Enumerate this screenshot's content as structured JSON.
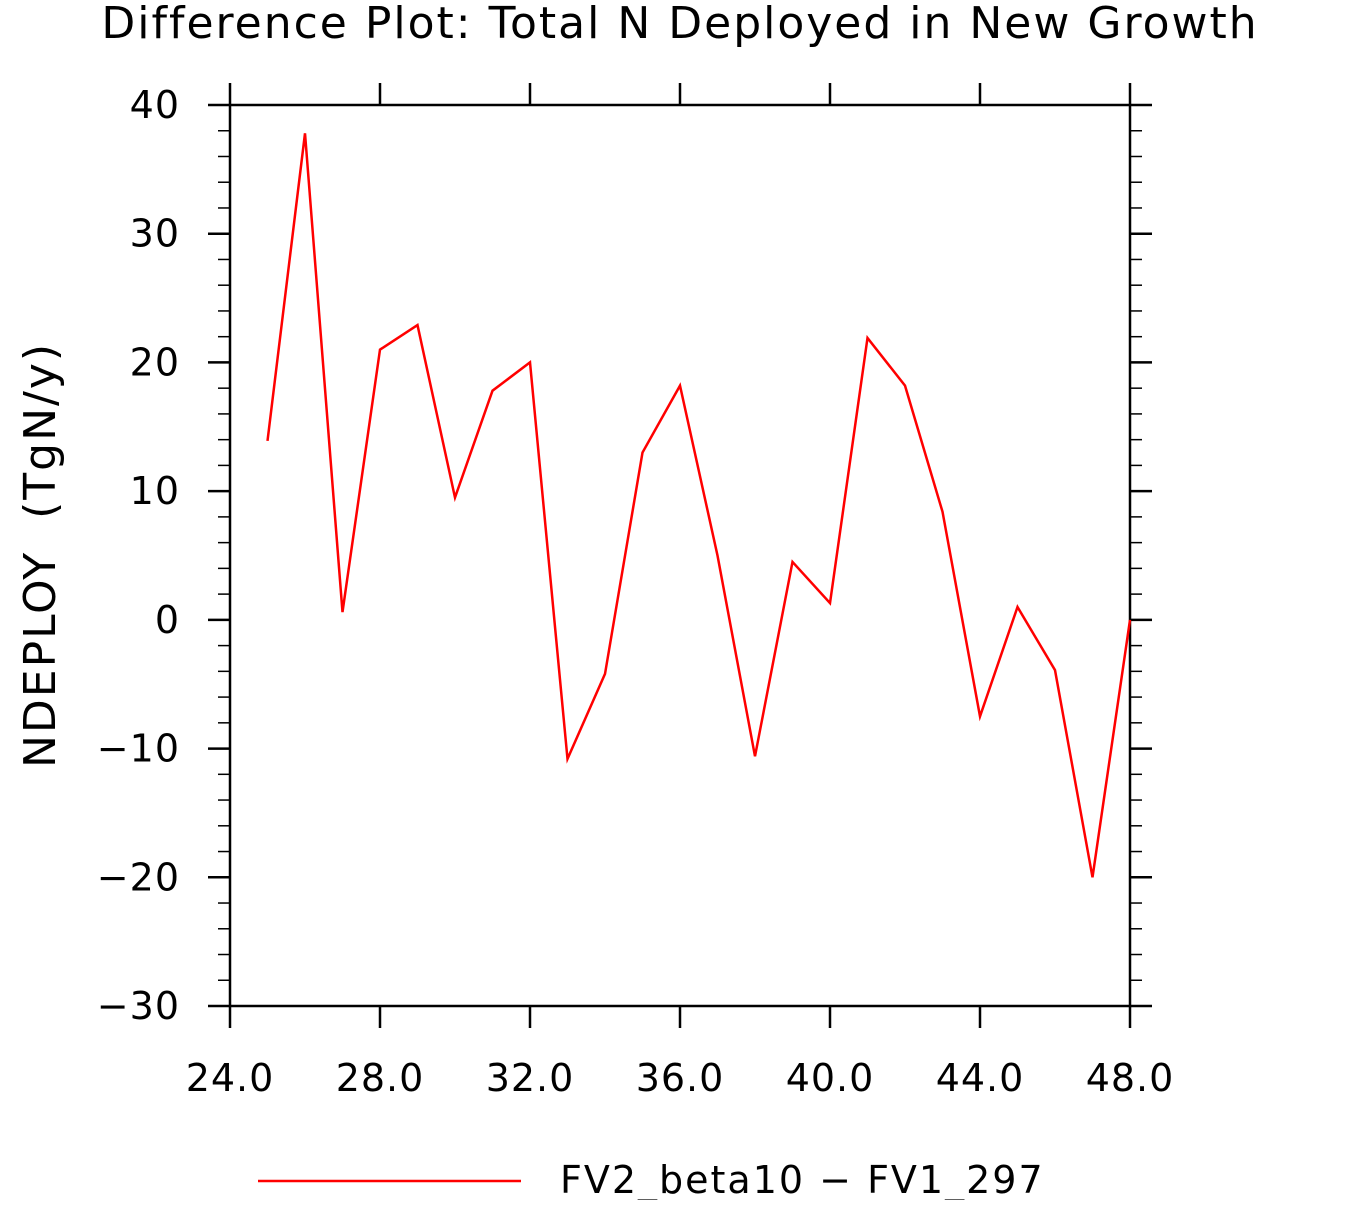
{
  "chart_data": {
    "type": "line",
    "title": "Difference Plot: Total N Deployed in New Growth",
    "xlabel": "",
    "ylabel": "NDEPLOY  (TgN/y)",
    "xlim": [
      24,
      48
    ],
    "ylim": [
      -30,
      40
    ],
    "x_ticks": [
      24,
      28,
      32,
      36,
      40,
      44,
      48
    ],
    "x_tick_labels": [
      "24.0",
      "28.0",
      "32.0",
      "36.0",
      "40.0",
      "44.0",
      "48.0"
    ],
    "y_ticks": [
      -30,
      -20,
      -10,
      0,
      10,
      20,
      30,
      40
    ],
    "y_tick_labels": [
      "−30",
      "−20",
      "−10",
      "0",
      "10",
      "20",
      "30",
      "40"
    ],
    "grid": false,
    "legend_position": "bottom-center",
    "series": [
      {
        "name": "FV2_beta10 − FV1_297",
        "color": "#ff0000",
        "x": [
          25,
          26,
          27,
          28,
          29,
          30,
          31,
          32,
          33,
          34,
          35,
          36,
          37,
          38,
          39,
          40,
          41,
          42,
          43,
          44,
          45,
          46,
          47,
          48
        ],
        "y": [
          13.9,
          37.8,
          0.6,
          21.0,
          22.9,
          9.5,
          17.8,
          20.0,
          -10.8,
          -4.2,
          13.0,
          18.2,
          5.0,
          -10.6,
          4.5,
          1.3,
          21.9,
          18.2,
          8.4,
          -7.5,
          1.0,
          -3.9,
          -20.0,
          0.0
        ]
      }
    ]
  }
}
